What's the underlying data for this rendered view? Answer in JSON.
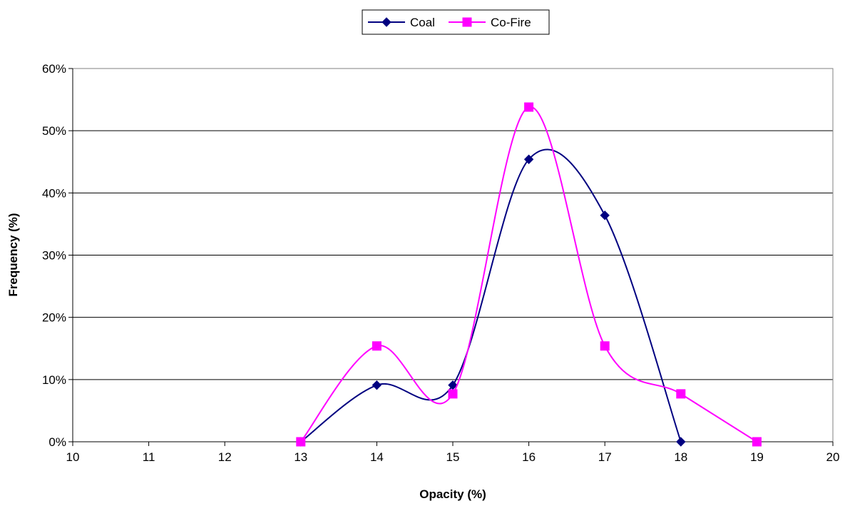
{
  "chart_data": {
    "type": "line",
    "title": "",
    "xlabel": "Opacity (%)",
    "ylabel": "Frequency (%)",
    "xlim": [
      10,
      20
    ],
    "ylim": [
      0,
      60
    ],
    "x_ticks": [
      "10",
      "11",
      "12",
      "13",
      "14",
      "15",
      "16",
      "17",
      "18",
      "19",
      "20"
    ],
    "y_ticks": [
      "0%",
      "10%",
      "20%",
      "30%",
      "40%",
      "50%",
      "60%"
    ],
    "grid": "horizontal",
    "legend_position": "top-center",
    "smoothed": true,
    "series": [
      {
        "name": "Coal",
        "color": "#000080",
        "marker": "diamond",
        "x": [
          13,
          14,
          15,
          16,
          17,
          18
        ],
        "y": [
          0,
          9.1,
          9.1,
          45.4,
          36.4,
          0
        ]
      },
      {
        "name": "Co-Fire",
        "color": "#FF00FF",
        "marker": "square",
        "x": [
          13,
          14,
          15,
          16,
          17,
          18,
          19
        ],
        "y": [
          0,
          15.4,
          7.7,
          53.8,
          15.4,
          7.7,
          0
        ]
      }
    ]
  }
}
